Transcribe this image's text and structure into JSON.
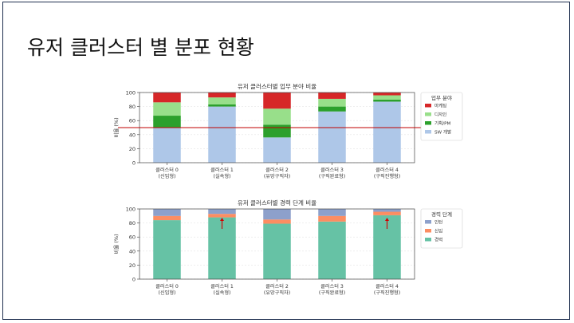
{
  "slide": {
    "title": "유저 클러스터 별 분포 현황"
  },
  "chart_data": [
    {
      "type": "bar",
      "stacked": true,
      "title": "유저 클러스터별 업무 분야 비율",
      "ylabel": "비율 (%)",
      "ylim": [
        0,
        100
      ],
      "yticks": [
        "0",
        "20",
        "40",
        "60",
        "80",
        "100"
      ],
      "categories": [
        "클러스터 0\n(신입형)",
        "클러스터 1\n(실속형)",
        "클러스터 2\n(유망구직자)",
        "클러스터 3\n(구직완료형)",
        "클러스터 4\n(구직진행형)"
      ],
      "legend_title": "업무 분야",
      "legend_position": "right",
      "reference_line": {
        "y": 50,
        "color": "#c00000"
      },
      "series": [
        {
          "name": "SW 개발",
          "color": "#aec7e8",
          "values": [
            50,
            80,
            36,
            73,
            87
          ]
        },
        {
          "name": "기획/PM",
          "color": "#2ca02c",
          "values": [
            17,
            3,
            18,
            7,
            3
          ]
        },
        {
          "name": "디자인",
          "color": "#98df8a",
          "values": [
            19,
            10,
            23,
            11,
            6
          ]
        },
        {
          "name": "마케팅",
          "color": "#d62728",
          "values": [
            14,
            7,
            23,
            9,
            4
          ]
        }
      ]
    },
    {
      "type": "bar",
      "stacked": true,
      "title": "유저 클러스터별 경력 단계 비율",
      "ylabel": "비율 (%)",
      "ylim": [
        0,
        100
      ],
      "yticks": [
        "0",
        "20",
        "40",
        "60",
        "80",
        "100"
      ],
      "categories": [
        "클러스터 0\n(신입형)",
        "클러스터 1\n(실속형)",
        "클러스터 2\n(유망구직자)",
        "클러스터 3\n(구직완료형)",
        "클러스터 4\n(구직진행형)"
      ],
      "legend_title": "경력 단계",
      "legend_position": "right",
      "highlight_arrows": [
        1,
        4
      ],
      "series": [
        {
          "name": "경력",
          "color": "#66c2a5",
          "values": [
            84,
            88,
            79,
            82,
            91
          ]
        },
        {
          "name": "신입",
          "color": "#fc8d62",
          "values": [
            6,
            5,
            6,
            8,
            5
          ]
        },
        {
          "name": "인턴",
          "color": "#8da0cb",
          "values": [
            10,
            7,
            15,
            10,
            4
          ]
        }
      ]
    }
  ]
}
